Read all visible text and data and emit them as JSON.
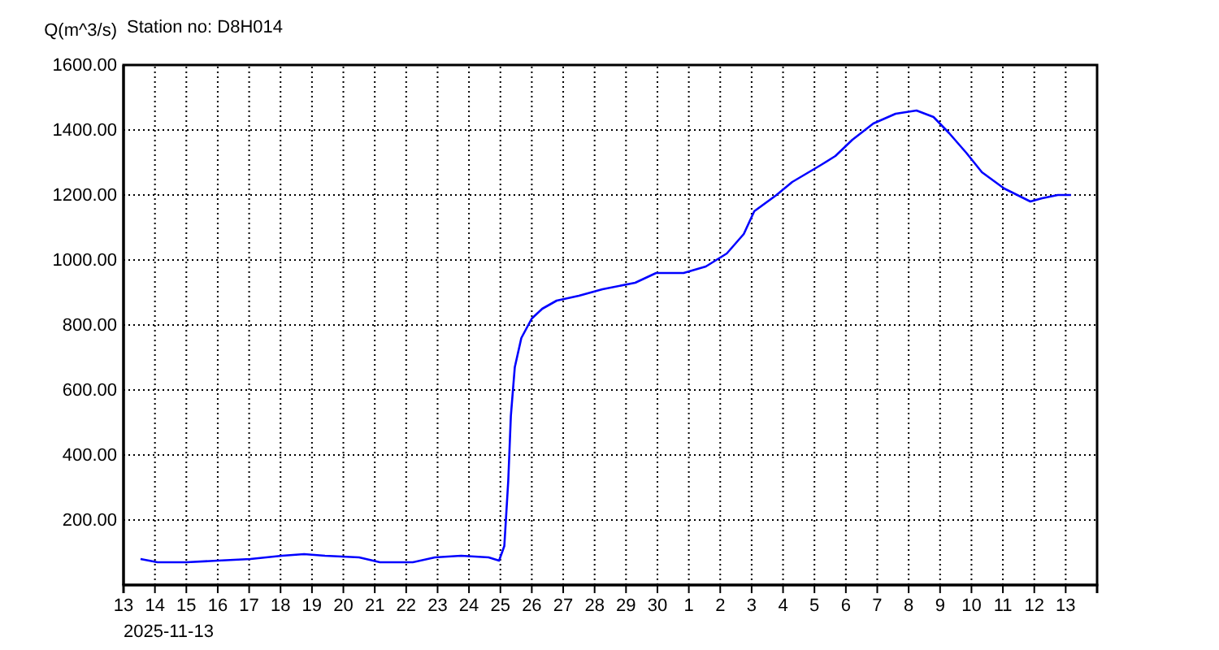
{
  "chart_data": {
    "type": "line",
    "title": "Station no: D8H014",
    "ylabel": "Q(m^3/s)",
    "annotations": [
      "2025-11-13"
    ],
    "x": [
      "2025-11-13T13:00",
      "2025-11-14T02:00",
      "2025-11-15T00:00",
      "2025-11-16T00:00",
      "2025-11-17T01:00",
      "2025-11-18T01:00",
      "2025-11-18T18:00",
      "2025-11-19T10:00",
      "2025-11-20T12:00",
      "2025-11-21T04:00",
      "2025-11-22T05:00",
      "2025-11-22T22:00",
      "2025-11-23T18:00",
      "2025-11-24T15:00",
      "2025-11-24T23:00",
      "2025-11-25T03:00",
      "2025-11-25T06:00",
      "2025-11-25T08:00",
      "2025-11-25T11:00",
      "2025-11-25T16:00",
      "2025-11-26T00:00",
      "2025-11-26T08:00",
      "2025-11-26T19:00",
      "2025-11-27T12:00",
      "2025-11-28T06:00",
      "2025-11-29T07:00",
      "2025-11-29T23:00",
      "2025-11-30T20:00",
      "2025-12-01T13:00",
      "2025-12-02T05:00",
      "2025-12-02T18:00",
      "2025-12-03T02:00",
      "2025-12-03T19:00",
      "2025-12-04T07:00",
      "2025-12-05T04:00",
      "2025-12-05T16:00",
      "2025-12-06T05:00",
      "2025-12-06T21:00",
      "2025-12-07T14:00",
      "2025-12-08T06:00",
      "2025-12-08T19:00",
      "2025-12-09T07:00",
      "2025-12-09T20:00",
      "2025-12-10T08:00",
      "2025-12-11T01:00",
      "2025-12-11T21:00",
      "2025-12-12T06:00",
      "2025-12-12T18:00",
      "2025-12-13T04:00"
    ],
    "series": [
      {
        "color": "#0000ff",
        "values": [
          80,
          70,
          70,
          75,
          80,
          90,
          95,
          90,
          85,
          70,
          70,
          85,
          90,
          85,
          75,
          120,
          320,
          520,
          670,
          760,
          820,
          850,
          875,
          890,
          910,
          930,
          960,
          960,
          980,
          1020,
          1080,
          1150,
          1200,
          1240,
          1290,
          1320,
          1370,
          1420,
          1450,
          1460,
          1440,
          1390,
          1330,
          1270,
          1220,
          1180,
          1190,
          1200,
          1200
        ]
      }
    ],
    "xlim": [
      "2025-11-13",
      "2025-12-14"
    ],
    "xticks": [
      {
        "value": "2025-11-13",
        "label": "13"
      },
      {
        "value": "2025-11-14",
        "label": "14"
      },
      {
        "value": "2025-11-15",
        "label": "15"
      },
      {
        "value": "2025-11-16",
        "label": "16"
      },
      {
        "value": "2025-11-17",
        "label": "17"
      },
      {
        "value": "2025-11-18",
        "label": "18"
      },
      {
        "value": "2025-11-19",
        "label": "19"
      },
      {
        "value": "2025-11-20",
        "label": "20"
      },
      {
        "value": "2025-11-21",
        "label": "21"
      },
      {
        "value": "2025-11-22",
        "label": "22"
      },
      {
        "value": "2025-11-23",
        "label": "23"
      },
      {
        "value": "2025-11-24",
        "label": "24"
      },
      {
        "value": "2025-11-25",
        "label": "25"
      },
      {
        "value": "2025-11-26",
        "label": "26"
      },
      {
        "value": "2025-11-27",
        "label": "27"
      },
      {
        "value": "2025-11-28",
        "label": "28"
      },
      {
        "value": "2025-11-29",
        "label": "29"
      },
      {
        "value": "2025-11-30",
        "label": "30"
      },
      {
        "value": "2025-12-01",
        "label": "1"
      },
      {
        "value": "2025-12-02",
        "label": "2"
      },
      {
        "value": "2025-12-03",
        "label": "3"
      },
      {
        "value": "2025-12-04",
        "label": "4"
      },
      {
        "value": "2025-12-05",
        "label": "5"
      },
      {
        "value": "2025-12-06",
        "label": "6"
      },
      {
        "value": "2025-12-07",
        "label": "7"
      },
      {
        "value": "2025-12-08",
        "label": "8"
      },
      {
        "value": "2025-12-09",
        "label": "9"
      },
      {
        "value": "2025-12-10",
        "label": "10"
      },
      {
        "value": "2025-12-11",
        "label": "11"
      },
      {
        "value": "2025-12-12",
        "label": "12"
      },
      {
        "value": "2025-12-13",
        "label": "13"
      }
    ],
    "ylim": [
      0,
      1600
    ],
    "yticks": [
      {
        "value": 200,
        "label": "200.00"
      },
      {
        "value": 400,
        "label": "400.00"
      },
      {
        "value": 600,
        "label": "600.00"
      },
      {
        "value": 800,
        "label": "800.00"
      },
      {
        "value": 1000,
        "label": "1000.00"
      },
      {
        "value": 1200,
        "label": "1200.00"
      },
      {
        "value": 1400,
        "label": "1400.00"
      },
      {
        "value": 1600,
        "label": "1600.00"
      }
    ],
    "grid": true,
    "line_style": "solid"
  }
}
